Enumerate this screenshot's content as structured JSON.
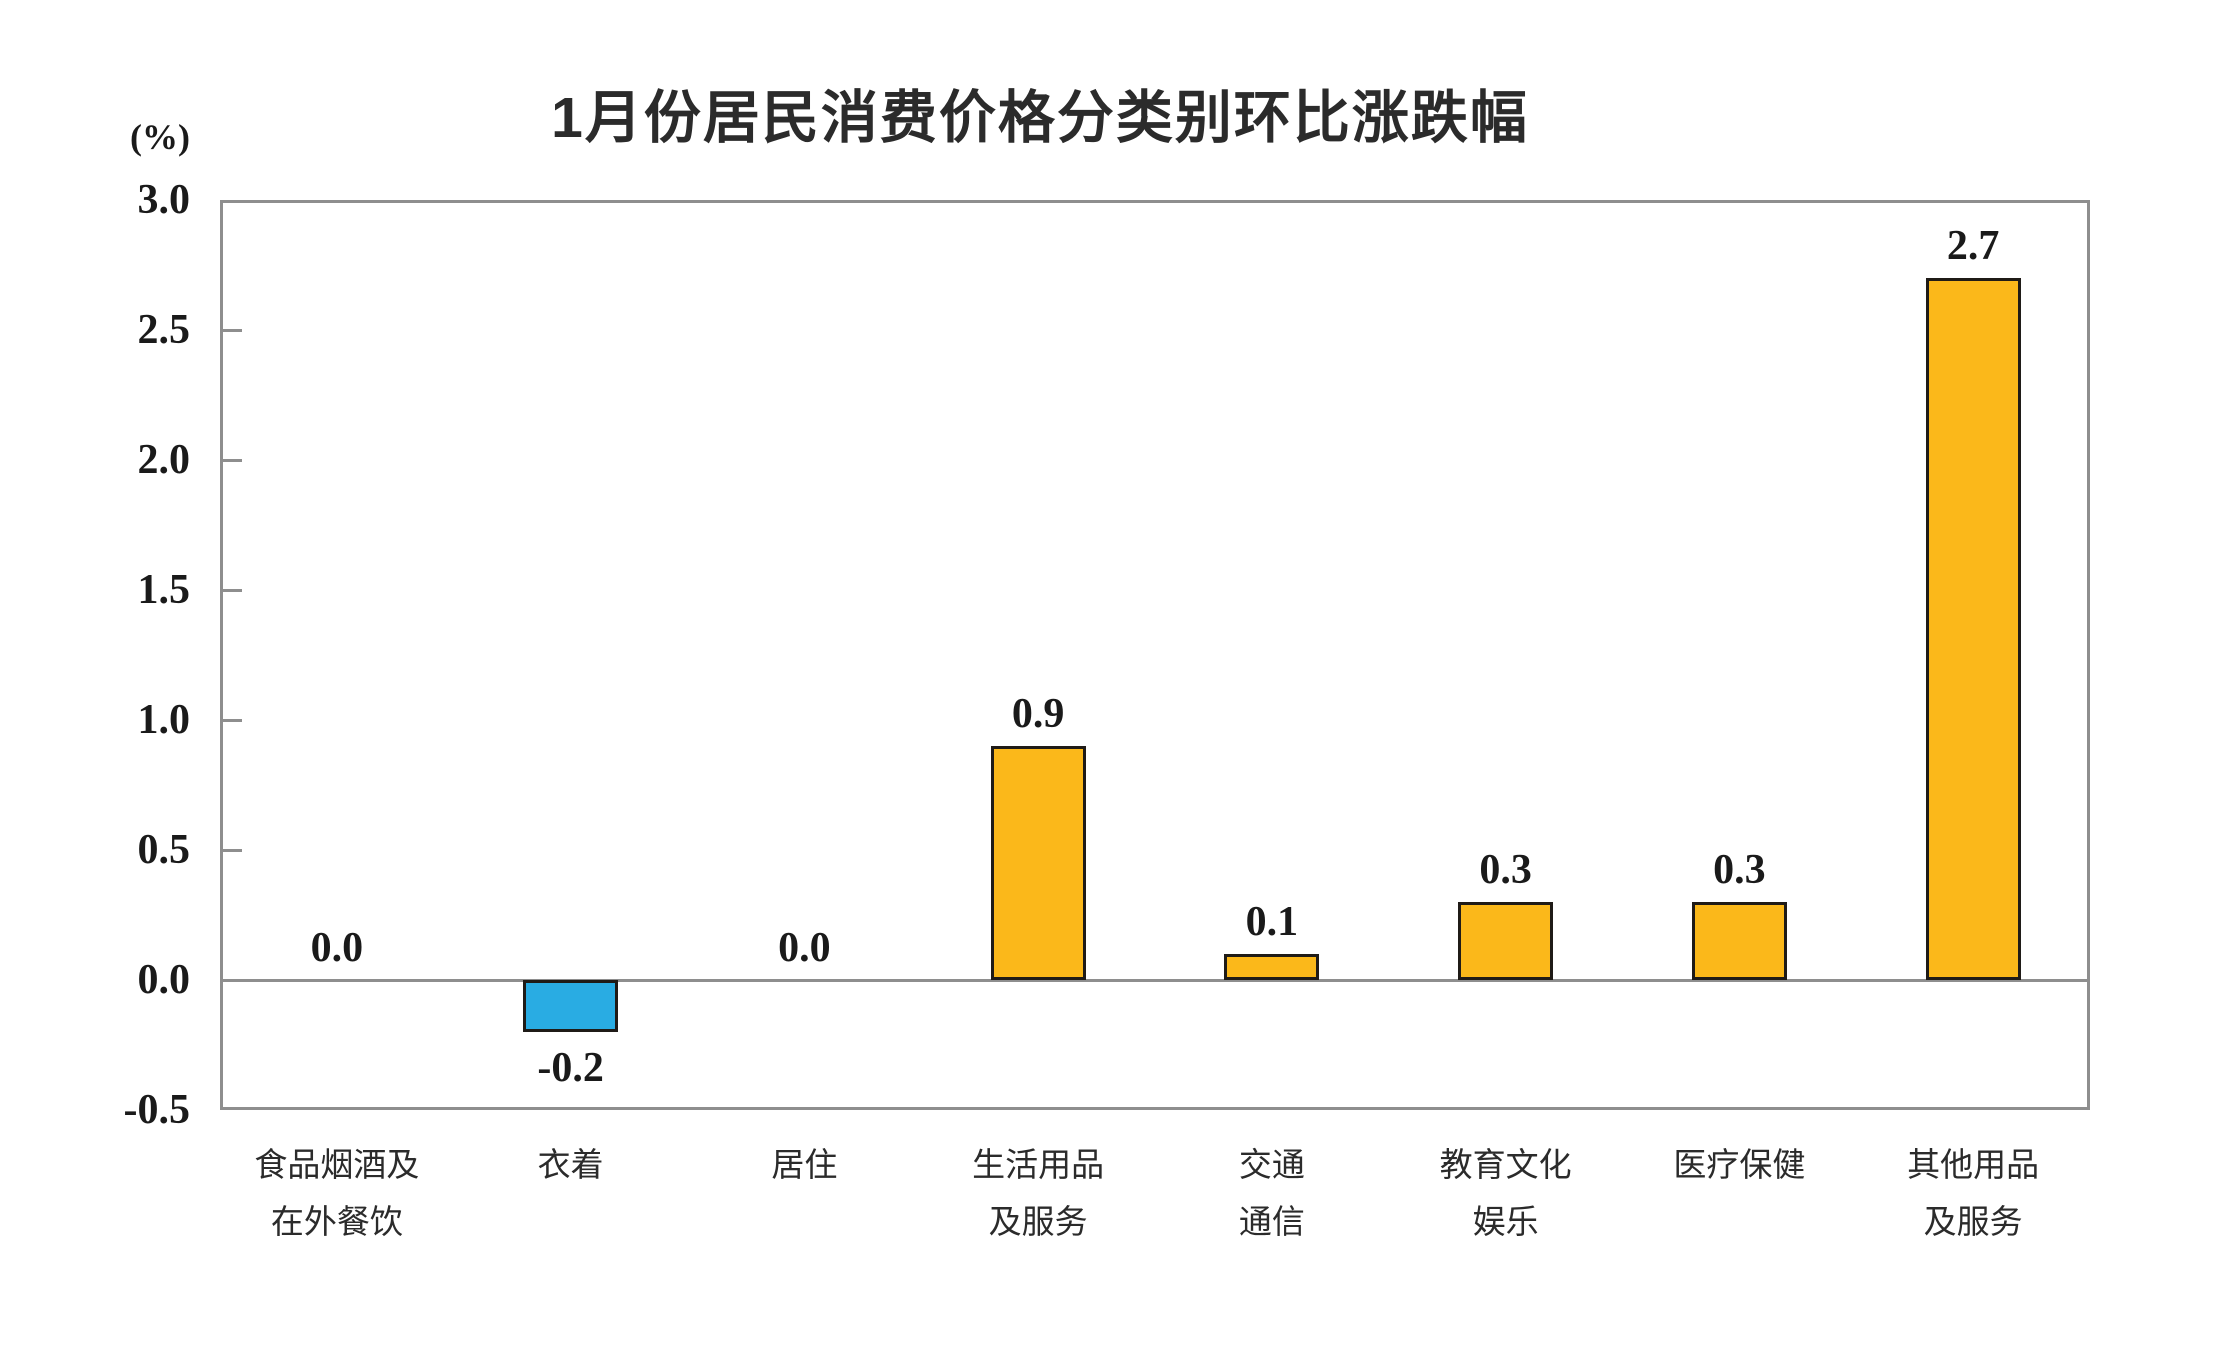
{
  "chart_data": {
    "type": "bar",
    "title": "1月份居民消费价格分类别环比涨跌幅",
    "unit": "(%)",
    "categories": [
      "食品烟酒及\n在外餐饮",
      "衣着",
      "居住",
      "生活用品\n及服务",
      "交通\n通信",
      "教育文化\n娱乐",
      "医疗保健",
      "其他用品\n及服务"
    ],
    "values": [
      0.0,
      -0.2,
      0.0,
      0.9,
      0.1,
      0.3,
      0.3,
      2.7
    ],
    "value_labels": [
      "0.0",
      "-0.2",
      "0.0",
      "0.9",
      "0.1",
      "0.3",
      "0.3",
      "2.7"
    ],
    "y_ticks": [
      "3.0",
      "2.5",
      "2.0",
      "1.5",
      "1.0",
      "0.5",
      "0.0",
      "-0.5"
    ],
    "ylim": [
      -0.5,
      3.0
    ],
    "grid": false,
    "legend": "none",
    "xlabel": "",
    "ylabel": "(%)",
    "colors": {
      "positive_bar": "#FBB81A",
      "negative_bar": "#29ACE3",
      "bar_border": "#1F1B17",
      "axis_frame": "#8E8E8E",
      "zero_line": "#8E8E8E",
      "text": "#1A1A1A"
    }
  }
}
